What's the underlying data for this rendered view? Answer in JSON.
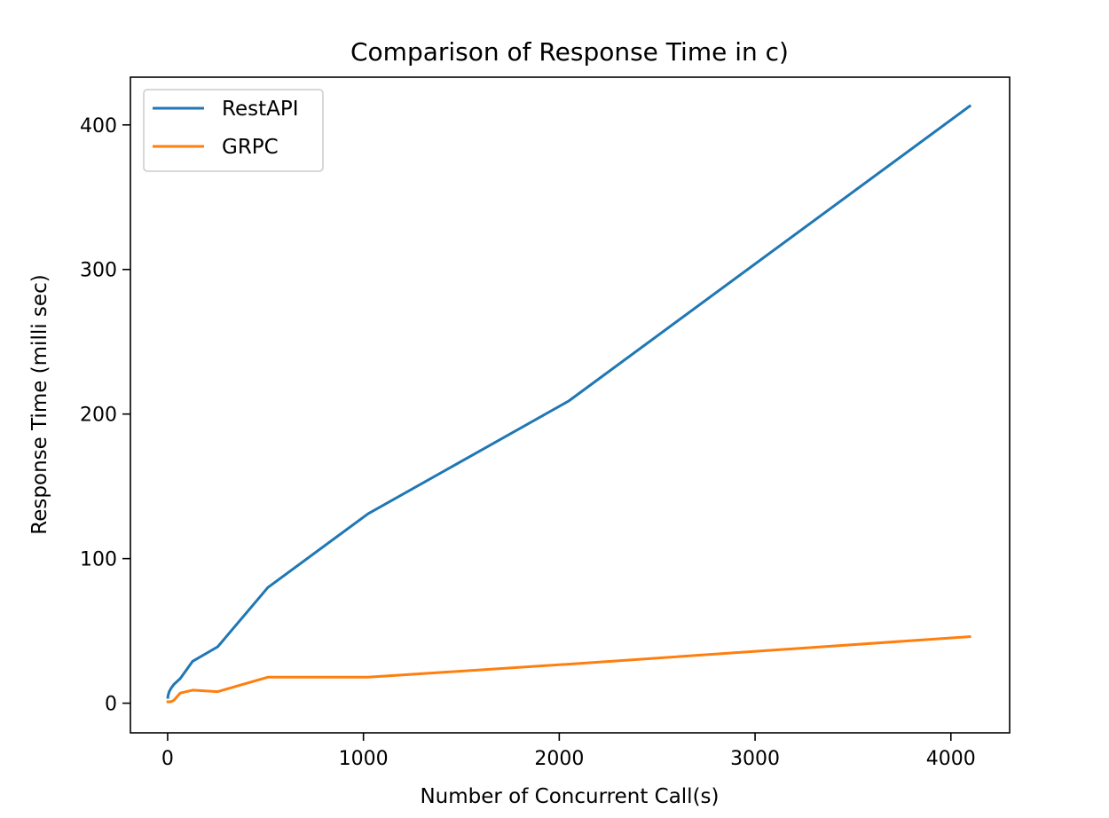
{
  "chart_data": {
    "type": "line",
    "title": "Comparison of Response Time in c)",
    "xlabel": "Number of Concurrent Call(s)",
    "ylabel": "Response Time (milli sec)",
    "xlim": [
      -190,
      4300
    ],
    "ylim": [
      -20.5,
      433
    ],
    "x_ticks": [
      0,
      1000,
      2000,
      3000,
      4000
    ],
    "y_ticks": [
      0,
      100,
      200,
      300,
      400
    ],
    "grid": false,
    "legend_position": "upper left",
    "series": [
      {
        "name": "RestAPI",
        "color": "#1f77b4",
        "x": [
          1,
          2,
          4,
          8,
          16,
          32,
          64,
          128,
          256,
          512,
          1024,
          2048,
          4096
        ],
        "y": [
          4,
          5,
          6,
          8,
          10,
          13,
          17,
          29,
          39,
          80,
          131,
          209,
          413
        ]
      },
      {
        "name": "GRPC",
        "color": "#ff7f0e",
        "x": [
          1,
          2,
          4,
          8,
          16,
          32,
          64,
          128,
          256,
          512,
          1024,
          2048,
          4096
        ],
        "y": [
          1,
          1,
          1,
          1,
          1,
          2,
          7,
          9,
          8,
          18,
          18,
          27,
          46
        ]
      }
    ]
  }
}
